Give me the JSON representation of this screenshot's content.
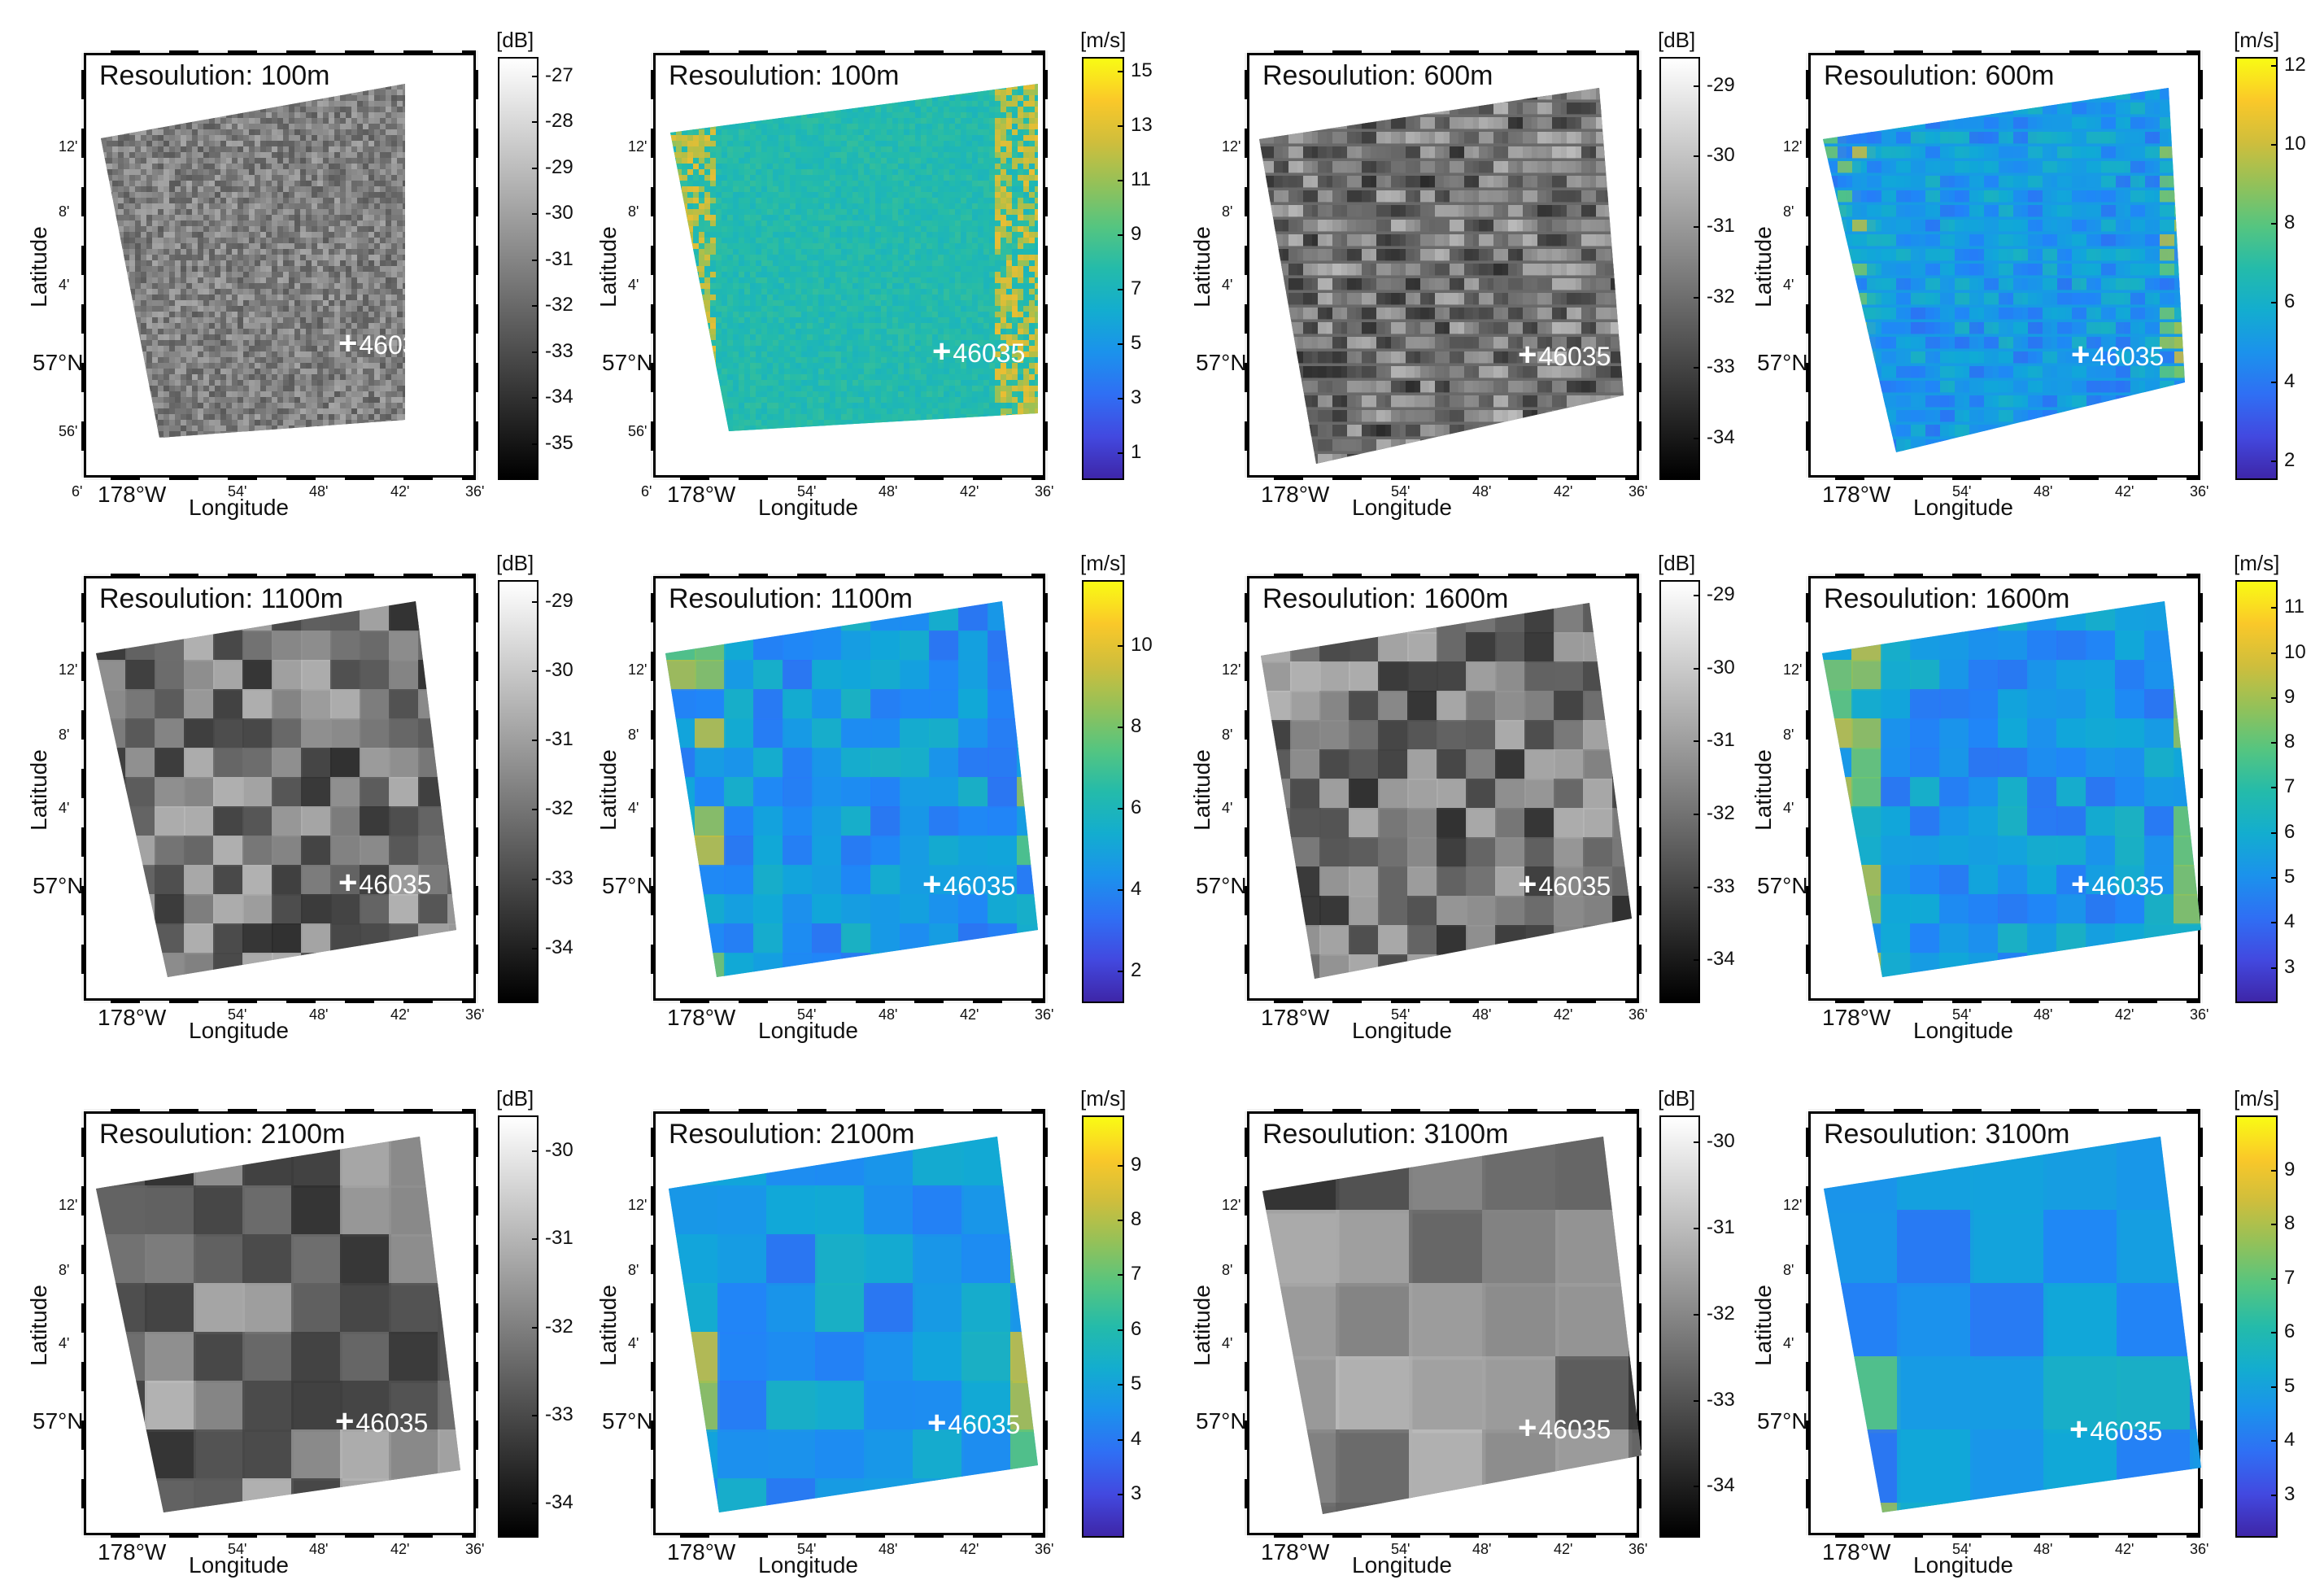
{
  "chart_data": [
    {
      "type": "heatmap",
      "variable": "sigma0",
      "title": "Resoulution: 100m",
      "unit": "[dB]",
      "ticks": [
        -27,
        -28,
        -29,
        -30,
        -31,
        -32,
        -33,
        -34,
        -35
      ],
      "cmin": -35.8,
      "cmax": -26.6,
      "colormap": "gray",
      "texture": "noise",
      "xlabel": "Longitude",
      "ylabel": "Latitude",
      "x_ticks": [
        "6'",
        "178°W",
        "54'",
        "48'",
        "42'",
        "36'"
      ],
      "y_ticks": [
        "12'",
        "8'",
        "4'",
        "57°N",
        "56'"
      ],
      "buoy": "46035"
    },
    {
      "type": "heatmap",
      "variable": "wind_speed",
      "title": "Resoulution: 100m",
      "unit": "[m/s]",
      "ticks": [
        15,
        13,
        11,
        9,
        7,
        5,
        3,
        1
      ],
      "cmin": 0,
      "cmax": 15.5,
      "colormap": "parula",
      "texture": "noise-edges",
      "xlabel": "Longitude",
      "ylabel": "Latitude",
      "x_ticks": [
        "6'",
        "178°W",
        "54'",
        "48'",
        "42'",
        "36'"
      ],
      "y_ticks": [
        "12'",
        "8'",
        "4'",
        "57°N",
        "56'"
      ],
      "buoy": "46035"
    },
    {
      "type": "heatmap",
      "variable": "sigma0",
      "title": "Resoulution: 600m",
      "unit": "[dB]",
      "ticks": [
        -29,
        -30,
        -31,
        -32,
        -33,
        -34
      ],
      "cmin": -34.6,
      "cmax": -28.6,
      "colormap": "gray",
      "texture": "blobs",
      "xlabel": "Longitude",
      "ylabel": "Latitude",
      "x_ticks": [
        "178°W",
        "54'",
        "48'",
        "42'",
        "36'"
      ],
      "y_ticks": [
        "12'",
        "8'",
        "4'",
        "57°N"
      ],
      "buoy": "46035"
    },
    {
      "type": "heatmap",
      "variable": "wind_speed",
      "title": "Resoulution: 600m",
      "unit": "[m/s]",
      "ticks": [
        12,
        10,
        8,
        6,
        4,
        2
      ],
      "cmin": 1.5,
      "cmax": 12.2,
      "colormap": "parula",
      "texture": "blobs",
      "xlabel": "Longitude",
      "ylabel": "Latitude",
      "x_ticks": [
        "178°W",
        "54'",
        "48'",
        "42'",
        "36'"
      ],
      "y_ticks": [
        "12'",
        "8'",
        "4'",
        "57°N"
      ],
      "buoy": "46035"
    },
    {
      "type": "heatmap",
      "variable": "sigma0",
      "title": "Resoulution: 1100m",
      "unit": "[dB]",
      "ticks": [
        -29,
        -30,
        -31,
        -32,
        -33,
        -34
      ],
      "cmin": -34.8,
      "cmax": -28.7,
      "colormap": "gray",
      "texture": "patches",
      "xlabel": "Longitude",
      "ylabel": "Latitude",
      "x_ticks": [
        "178°W",
        "54'",
        "48'",
        "42'",
        "36'"
      ],
      "y_ticks": [
        "12'",
        "8'",
        "4'",
        "57°N"
      ],
      "buoy": "46035"
    },
    {
      "type": "heatmap",
      "variable": "wind_speed",
      "title": "Resoulution: 1100m",
      "unit": "[m/s]",
      "ticks": [
        10,
        8,
        6,
        4,
        2
      ],
      "cmin": 1.2,
      "cmax": 11.6,
      "colormap": "parula",
      "texture": "patches",
      "xlabel": "Longitude",
      "ylabel": "Latitude",
      "x_ticks": [
        "178°W",
        "54'",
        "48'",
        "42'",
        "36'"
      ],
      "y_ticks": [
        "12'",
        "8'",
        "4'",
        "57°N"
      ],
      "buoy": "46035"
    },
    {
      "type": "heatmap",
      "variable": "sigma0",
      "title": "Resoulution: 1600m",
      "unit": "[dB]",
      "ticks": [
        -29,
        -30,
        -31,
        -32,
        -33,
        -34
      ],
      "cmin": -34.6,
      "cmax": -28.8,
      "colormap": "gray",
      "texture": "patches",
      "xlabel": "Longitude",
      "ylabel": "Latitude",
      "x_ticks": [
        "178°W",
        "54'",
        "48'",
        "42'",
        "36'"
      ],
      "y_ticks": [
        "12'",
        "8'",
        "4'",
        "57°N"
      ],
      "buoy": "46035"
    },
    {
      "type": "heatmap",
      "variable": "wind_speed",
      "title": "Resoulution: 1600m",
      "unit": "[m/s]",
      "ticks": [
        11,
        10,
        9,
        8,
        7,
        6,
        5,
        4,
        3
      ],
      "cmin": 2.2,
      "cmax": 11.6,
      "colormap": "parula",
      "texture": "patches",
      "xlabel": "Longitude",
      "ylabel": "Latitude",
      "x_ticks": [
        "178°W",
        "54'",
        "48'",
        "42'",
        "36'"
      ],
      "y_ticks": [
        "12'",
        "8'",
        "4'",
        "57°N"
      ],
      "buoy": "46035"
    },
    {
      "type": "heatmap",
      "variable": "sigma0",
      "title": "Resoulution: 2100m",
      "unit": "[dB]",
      "ticks": [
        -30,
        -31,
        -32,
        -33,
        -34
      ],
      "cmin": -34.4,
      "cmax": -29.6,
      "colormap": "gray",
      "texture": "facets",
      "xlabel": "Longitude",
      "ylabel": "Latitude",
      "x_ticks": [
        "178°W",
        "54'",
        "48'",
        "42'",
        "36'"
      ],
      "y_ticks": [
        "12'",
        "8'",
        "4'",
        "57°N"
      ],
      "buoy": "46035"
    },
    {
      "type": "heatmap",
      "variable": "wind_speed",
      "title": "Resoulution: 2100m",
      "unit": "[m/s]",
      "ticks": [
        9,
        8,
        7,
        6,
        5,
        4,
        3
      ],
      "cmin": 2.2,
      "cmax": 9.9,
      "colormap": "parula",
      "texture": "facets",
      "xlabel": "Longitude",
      "ylabel": "Latitude",
      "x_ticks": [
        "178°W",
        "54'",
        "48'",
        "42'",
        "36'"
      ],
      "y_ticks": [
        "12'",
        "8'",
        "4'",
        "57°N"
      ],
      "buoy": "46035"
    },
    {
      "type": "heatmap",
      "variable": "sigma0",
      "title": "Resoulution: 3100m",
      "unit": "[dB]",
      "ticks": [
        -30,
        -31,
        -32,
        -33,
        -34
      ],
      "cmin": -34.6,
      "cmax": -29.7,
      "colormap": "gray",
      "texture": "facets-large",
      "xlabel": "Longitude",
      "ylabel": "Latitude",
      "x_ticks": [
        "178°W",
        "54'",
        "48'",
        "42'",
        "36'"
      ],
      "y_ticks": [
        "12'",
        "8'",
        "4'",
        "57°N"
      ],
      "buoy": "46035"
    },
    {
      "type": "heatmap",
      "variable": "wind_speed",
      "title": "Resoulution: 3100m",
      "unit": "[m/s]",
      "ticks": [
        9,
        8,
        7,
        6,
        5,
        4,
        3
      ],
      "cmin": 2.2,
      "cmax": 10,
      "colormap": "parula",
      "texture": "facets-large",
      "xlabel": "Longitude",
      "ylabel": "Latitude",
      "x_ticks": [
        "178°W",
        "54'",
        "48'",
        "42'",
        "36'"
      ],
      "y_ticks": [
        "12'",
        "8'",
        "4'",
        "57°N"
      ],
      "buoy": "46035"
    }
  ]
}
